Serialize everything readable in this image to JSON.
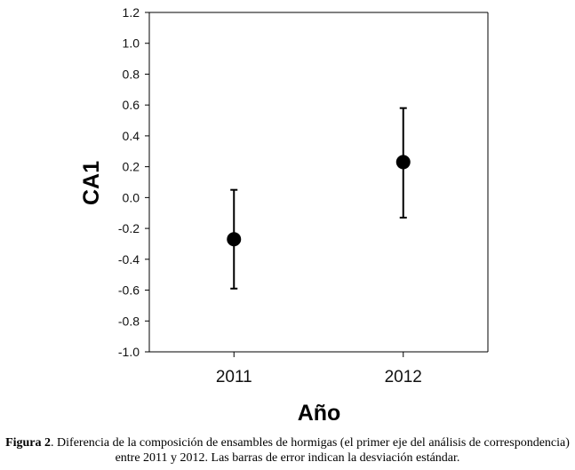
{
  "chart_data": {
    "type": "scatter",
    "xlabel": "Año",
    "ylabel": "CA1",
    "categories": [
      "2011",
      "2012"
    ],
    "series": [
      {
        "values": [
          -0.27,
          0.23
        ],
        "error_low": [
          -0.59,
          -0.13
        ],
        "error_high": [
          0.05,
          0.58
        ]
      }
    ],
    "ylim": [
      -1.0,
      1.2
    ],
    "yticks": [
      "-1.0",
      "-0.8",
      "-0.6",
      "-0.4",
      "-0.2",
      "0.0",
      "0.2",
      "0.4",
      "0.6",
      "0.8",
      "1.0",
      "1.2"
    ],
    "grid": false,
    "colors": {
      "marker": "#000000",
      "axis": "#000000"
    }
  },
  "caption": {
    "label": "Figura 2",
    "text": ". Diferencia de la composición de ensambles de hormigas (el primer eje del análisis de correspondencia) entre 2011 y 2012. Las barras de error indican la desviación estándar."
  }
}
